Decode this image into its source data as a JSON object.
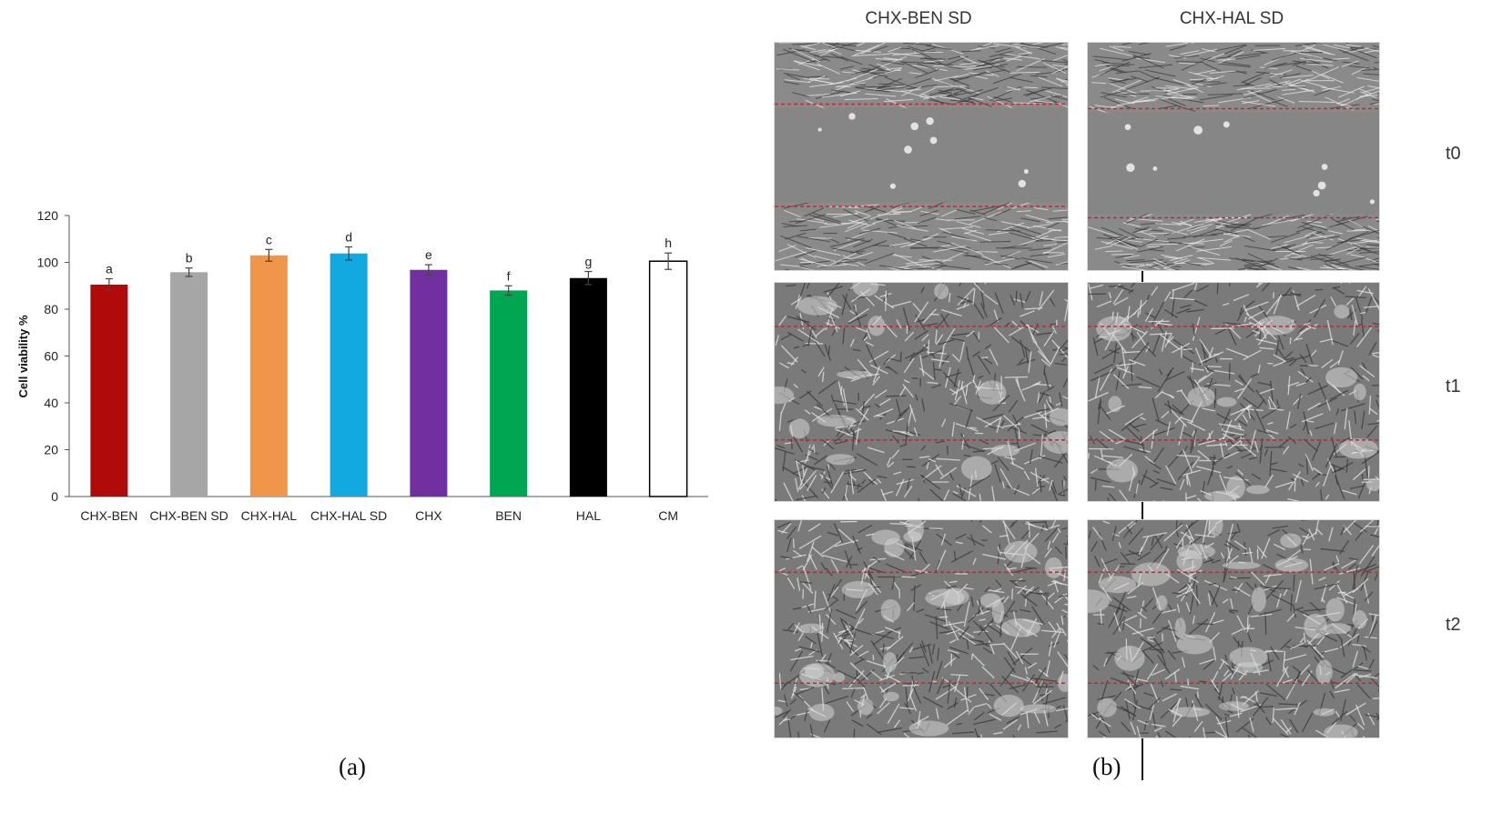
{
  "chart_data": {
    "type": "bar",
    "categories": [
      "CHX-BEN",
      "CHX-BEN SD",
      "CHX-HAL",
      "CHX-HAL SD",
      "CHX",
      "BEN",
      "HAL",
      "CM"
    ],
    "values": [
      90.5,
      95.8,
      103,
      103.8,
      96.8,
      88,
      93.3,
      100.5
    ],
    "errors": [
      2.5,
      1.8,
      2.5,
      2.8,
      2.2,
      2.0,
      2.8,
      3.5
    ],
    "significance_letters": [
      "a",
      "b",
      "c",
      "d",
      "e",
      "f",
      "g",
      "h"
    ],
    "colors": [
      "#b00a0a",
      "#a6a6a6",
      "#f0964a",
      "#12a8e0",
      "#7030a0",
      "#00a651",
      "#000000",
      "#ffffff"
    ],
    "ylabel": "Cell viability %",
    "xlabel": "",
    "ylim": [
      0,
      120
    ],
    "yticks": [
      0,
      20,
      40,
      60,
      80,
      100,
      120
    ],
    "grid": false,
    "legend": "none"
  },
  "panels": {
    "a_label": "(a)",
    "b_label": "(b)"
  },
  "micrographs": {
    "columns": [
      "CHX-BEN SD",
      "CHX-HAL SD"
    ],
    "rows": [
      "t0",
      "t1",
      "t2"
    ],
    "scratch_line_color": "#c0283a"
  }
}
